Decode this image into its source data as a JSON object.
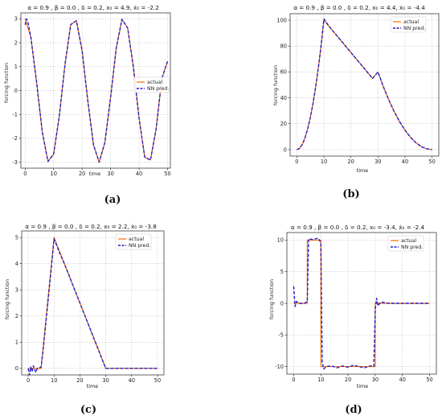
{
  "legend": {
    "actual": "actual",
    "pred": "NN pred."
  },
  "colors": {
    "actual": "#ff6a00",
    "pred": "#1f1fcc",
    "grid": "#b8b8b8"
  },
  "chart_data": [
    {
      "id": "a",
      "caption": "(a)",
      "type": "line",
      "title": "α = 0.9 , β = 0.0 , δ = 0.2, x₀ = 4.9, ẋ₀ = -2.2",
      "xlabel": "time",
      "ylabel": "forcing function",
      "xlim": [
        -1.5,
        51
      ],
      "ylim": [
        -3.25,
        3.25
      ],
      "xticks": [
        0,
        10,
        20,
        30,
        40,
        50
      ],
      "yticks": [
        -3,
        -2,
        -1,
        0,
        1,
        2,
        3
      ],
      "grid": true,
      "legend_position": "right",
      "series": [
        {
          "name": "actual",
          "x": [
            0,
            2,
            4,
            6,
            8,
            10,
            12,
            14,
            16,
            18,
            20,
            22,
            24,
            26,
            28,
            30,
            32,
            34,
            36,
            38,
            40,
            42,
            44,
            46,
            48,
            50
          ],
          "y": [
            3.0,
            2.23,
            0.36,
            -1.73,
            -2.97,
            -2.66,
            -1.06,
            1.1,
            2.76,
            2.92,
            1.67,
            -0.43,
            -2.28,
            -3.0,
            -2.17,
            -0.29,
            1.79,
            2.98,
            2.62,
            0.99,
            -1.16,
            -2.79,
            -2.91,
            -1.61,
            0.5,
            1.22
          ]
        },
        {
          "name": "NN pred.",
          "x": [
            0,
            0.5,
            1,
            2,
            4,
            6,
            8,
            10,
            12,
            14,
            16,
            18,
            20,
            22,
            24,
            26,
            28,
            30,
            32,
            34,
            36,
            38,
            40,
            42,
            44,
            46,
            48,
            50
          ],
          "y": [
            2.75,
            3.0,
            2.85,
            2.23,
            0.36,
            -1.73,
            -2.97,
            -2.66,
            -1.06,
            1.1,
            2.76,
            2.92,
            1.67,
            -0.43,
            -2.28,
            -3.0,
            -2.17,
            -0.29,
            1.79,
            2.98,
            2.62,
            0.99,
            -1.16,
            -2.79,
            -2.91,
            -1.61,
            0.5,
            1.22
          ]
        }
      ]
    },
    {
      "id": "b",
      "caption": "(b)",
      "type": "line",
      "title": "α = 0.9 , β = 0.0 , δ = 0.2, x₀ = 4.4, ẋ₀ = -4.4",
      "xlabel": "time",
      "ylabel": "forcing function",
      "xlim": [
        -2.5,
        52.5
      ],
      "ylim": [
        -5,
        105
      ],
      "xticks": [
        0,
        10,
        20,
        30,
        40,
        50
      ],
      "yticks": [
        0,
        20,
        40,
        60,
        80,
        100
      ],
      "grid": true,
      "legend_position": "top-right",
      "series": [
        {
          "name": "actual",
          "x": [
            0,
            1,
            2,
            3,
            4,
            5,
            6,
            7,
            8,
            9,
            10,
            12,
            14,
            16,
            18,
            20,
            22,
            24,
            26,
            28,
            30,
            32,
            34,
            36,
            38,
            40,
            42,
            44,
            46,
            48,
            50
          ],
          "y": [
            0,
            1,
            4,
            9,
            16,
            25,
            36,
            49,
            64,
            81,
            100,
            95,
            90,
            85,
            80,
            75,
            70,
            65,
            60,
            55,
            60,
            48.6,
            38.4,
            29.4,
            21.6,
            15,
            9.6,
            5.4,
            2.4,
            0.6,
            0
          ]
        },
        {
          "name": "NN pred.",
          "x": [
            0,
            1,
            2,
            3,
            4,
            5,
            6,
            7,
            8,
            9,
            10,
            12,
            14,
            16,
            18,
            20,
            22,
            24,
            26,
            28,
            30,
            32,
            34,
            36,
            38,
            40,
            42,
            44,
            46,
            48,
            50
          ],
          "y": [
            0,
            1,
            4,
            9,
            16,
            25,
            36,
            49,
            64,
            81,
            101,
            95,
            90,
            85,
            80,
            75,
            70,
            65,
            60,
            55,
            60,
            48.6,
            38.4,
            29.4,
            21.6,
            15,
            9.6,
            5.4,
            2.4,
            0.6,
            0
          ]
        }
      ]
    },
    {
      "id": "c",
      "caption": "(c)",
      "type": "line",
      "title": "α = 0.9 , β = 0.0 , δ = 0.2, x₀ = 2.2, ẋ₀ = -3.8",
      "xlabel": "time",
      "ylabel": "forcing function",
      "xlim": [
        -2.5,
        52.5
      ],
      "ylim": [
        -0.25,
        5.25
      ],
      "xticks": [
        0,
        10,
        20,
        30,
        40,
        50
      ],
      "yticks": [
        0,
        1,
        2,
        3,
        4,
        5
      ],
      "grid": true,
      "legend_position": "top-right",
      "series": [
        {
          "name": "actual",
          "x": [
            0,
            5,
            10,
            30,
            50
          ],
          "y": [
            0,
            0,
            5,
            0,
            0
          ]
        },
        {
          "name": "NN pred.",
          "x": [
            0,
            0.5,
            1,
            1.5,
            2,
            2.5,
            3,
            3.5,
            4,
            5,
            6,
            7,
            8,
            9,
            10,
            11,
            12,
            14,
            20,
            30,
            50
          ],
          "y": [
            0,
            -0.25,
            0.05,
            -0.12,
            0.1,
            -0.05,
            -0.15,
            0.0,
            0.02,
            0.05,
            0.9,
            1.9,
            2.9,
            3.9,
            4.95,
            4.7,
            4.45,
            4.0,
            2.5,
            0,
            0
          ]
        }
      ]
    },
    {
      "id": "d",
      "caption": "(d)",
      "type": "line",
      "title": "α = 0.9 , β = 0.0 , δ = 0.2, x₀ = -3.4, ẋ₀ = -2.4",
      "xlabel": "time",
      "ylabel": "forcing function",
      "xlim": [
        -2.5,
        52.5
      ],
      "ylim": [
        -11.2,
        11.2
      ],
      "xticks": [
        0,
        10,
        20,
        30,
        40,
        50
      ],
      "yticks": [
        -10,
        -5,
        0,
        5,
        10
      ],
      "grid": true,
      "legend_position": "top-right",
      "series": [
        {
          "name": "actual",
          "x": [
            0,
            5,
            5,
            10,
            10,
            30,
            30,
            50
          ],
          "y": [
            0,
            0,
            10,
            10,
            -10,
            -10,
            0,
            0
          ]
        },
        {
          "name": "NN pred.",
          "x": [
            0,
            0.5,
            1,
            2,
            3,
            4,
            5,
            5.5,
            7,
            9,
            10,
            10.5,
            11,
            12,
            14,
            16,
            18,
            20,
            22,
            24,
            26,
            28,
            29.5,
            30,
            30.5,
            31,
            32,
            35,
            40,
            50
          ],
          "y": [
            2.7,
            -0.5,
            0.3,
            0.0,
            0.0,
            0.0,
            0.3,
            10.2,
            10.1,
            10.3,
            9.6,
            -9.3,
            -10.4,
            -10.0,
            -9.9,
            -10.2,
            -9.9,
            -10.1,
            -9.8,
            -10.0,
            -10.2,
            -9.9,
            -10.0,
            -1.0,
            0.8,
            -0.4,
            0.2,
            0.0,
            0.0,
            0.0
          ]
        }
      ]
    }
  ]
}
